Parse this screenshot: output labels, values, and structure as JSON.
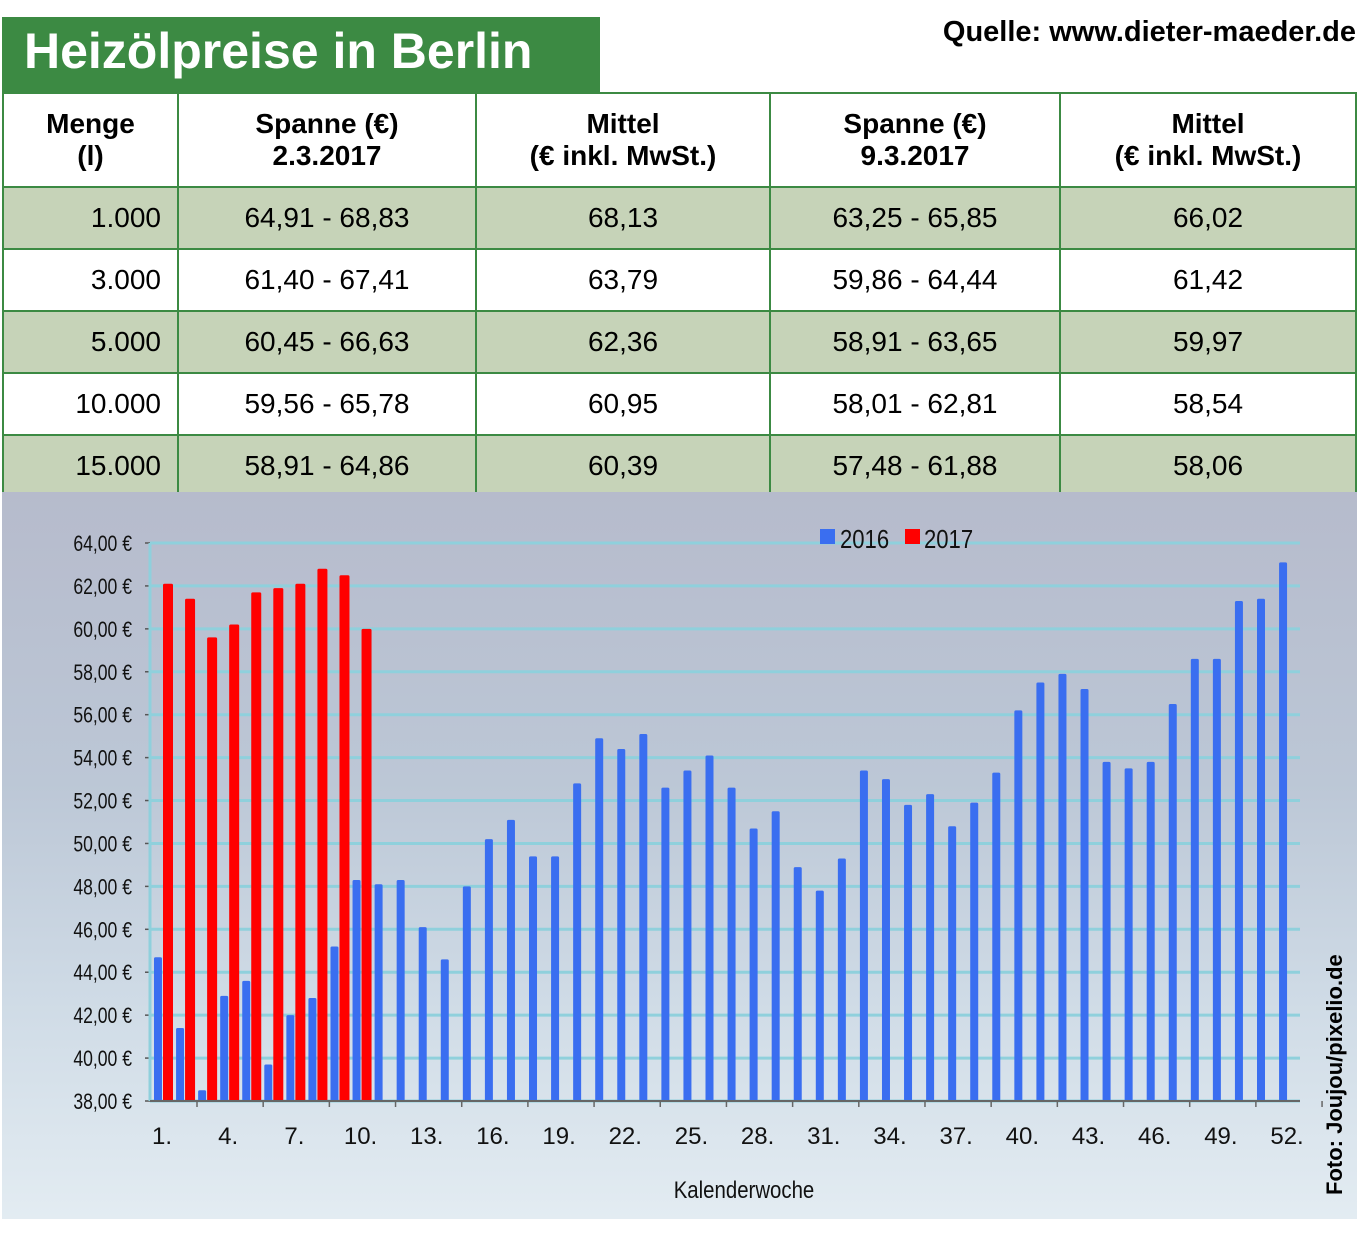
{
  "title": "Heizölpreise in Berlin",
  "source": "Quelle: www.dieter-maeder.de",
  "photo_credit": "Foto: Joujou/pixelio.de",
  "table": {
    "headers": [
      [
        "Menge",
        "(l)"
      ],
      [
        "Spanne (€)",
        "2.3.2017"
      ],
      [
        "Mittel",
        "(€ inkl. MwSt.)"
      ],
      [
        "Spanne (€)",
        "9.3.2017"
      ],
      [
        "Mittel",
        "(€ inkl. MwSt.)"
      ]
    ],
    "rows": [
      [
        "1.000",
        "64,91 - 68,83",
        "68,13",
        "63,25 - 65,85",
        "66,02"
      ],
      [
        "3.000",
        "61,40 - 67,41",
        "63,79",
        "59,86 - 64,44",
        "61,42"
      ],
      [
        "5.000",
        "60,45 - 66,63",
        "62,36",
        "58,91 - 63,65",
        "59,97"
      ],
      [
        "10.000",
        "59,56 - 65,78",
        "60,95",
        "58,01 - 62,81",
        "58,54"
      ],
      [
        "15.000",
        "58,91 - 64,86",
        "60,39",
        "57,48 - 61,88",
        "58,06"
      ]
    ]
  },
  "chart_data": {
    "type": "bar",
    "xlabel": "Kalenderwoche",
    "ylabel": "",
    "ylim": [
      38,
      64
    ],
    "yticks": [
      "38,00 €",
      "40,00 €",
      "42,00 €",
      "44,00 €",
      "46,00 €",
      "48,00 €",
      "50,00 €",
      "52,00 €",
      "54,00 €",
      "56,00 €",
      "58,00 €",
      "60,00 €",
      "62,00 €",
      "64,00 €"
    ],
    "xticks": [
      "1.",
      "4.",
      "7.",
      "10.",
      "13.",
      "16.",
      "19.",
      "22.",
      "25.",
      "28.",
      "31.",
      "34.",
      "37.",
      "40.",
      "43.",
      "46.",
      "49.",
      "52."
    ],
    "legend_position": "top-center",
    "grid": true,
    "series": [
      {
        "name": "2016",
        "color": "#3a6ef0",
        "values": [
          44.7,
          41.4,
          38.5,
          42.9,
          43.6,
          39.7,
          42.0,
          42.8,
          45.2,
          48.3,
          48.1,
          48.3,
          46.1,
          44.6,
          48.0,
          50.2,
          51.1,
          49.4,
          49.4,
          52.8,
          54.9,
          54.4,
          55.1,
          52.6,
          53.4,
          54.1,
          52.6,
          50.7,
          51.5,
          48.9,
          47.8,
          49.3,
          53.4,
          53.0,
          51.8,
          52.3,
          50.8,
          51.9,
          53.3,
          56.2,
          57.5,
          57.9,
          57.2,
          53.8,
          53.5,
          53.8,
          56.5,
          58.6,
          58.6,
          61.3,
          61.4,
          63.1
        ]
      },
      {
        "name": "2017",
        "color": "#ff0000",
        "values": [
          62.1,
          61.4,
          59.6,
          60.2,
          61.7,
          61.9,
          62.1,
          62.8,
          62.5,
          60.0
        ]
      }
    ]
  }
}
